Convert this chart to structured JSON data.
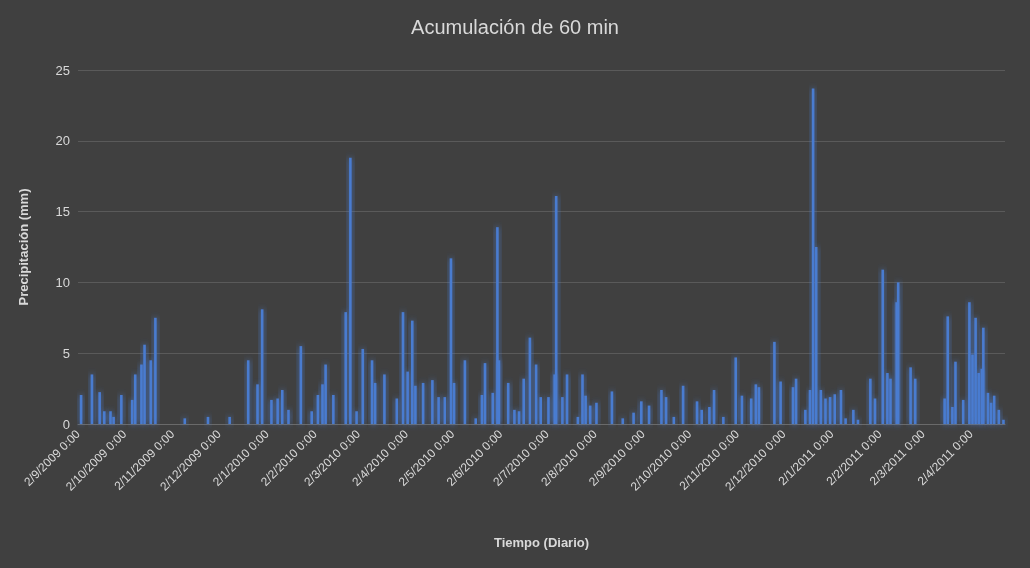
{
  "chart_data": {
    "type": "bar",
    "title": "Acumulación de 60 min",
    "xlabel": "Tiempo (Diario)",
    "ylabel": "Precipitación (mm)",
    "x": [
      "2009-09-04",
      "2009-09-11",
      "2009-09-16",
      "2009-09-19",
      "2009-09-23",
      "2009-09-25",
      "2009-09-30",
      "2009-10-07",
      "2009-10-09",
      "2009-10-13",
      "2009-10-15",
      "2009-10-19",
      "2009-10-22",
      "2009-11-10",
      "2009-11-25",
      "2009-12-09",
      "2009-12-21",
      "2009-12-27",
      "2009-12-30",
      "2010-01-05",
      "2010-01-09",
      "2010-01-12",
      "2010-01-16",
      "2010-01-24",
      "2010-01-31",
      "2010-02-04",
      "2010-02-07",
      "2010-02-09",
      "2010-02-14",
      "2010-02-22",
      "2010-02-25",
      "2010-03-01",
      "2010-03-05",
      "2010-03-11",
      "2010-03-13",
      "2010-03-19",
      "2010-03-27",
      "2010-03-31",
      "2010-04-03",
      "2010-04-06",
      "2010-04-08",
      "2010-04-13",
      "2010-04-19",
      "2010-04-23",
      "2010-04-27",
      "2010-05-01",
      "2010-05-03",
      "2010-05-10",
      "2010-05-17",
      "2010-05-21",
      "2010-05-23",
      "2010-05-28",
      "2010-05-31",
      "2010-06-01",
      "2010-06-07",
      "2010-06-11",
      "2010-06-14",
      "2010-06-17",
      "2010-06-21",
      "2010-06-25",
      "2010-06-28",
      "2010-07-03",
      "2010-07-07",
      "2010-07-08",
      "2010-07-12",
      "2010-07-15",
      "2010-07-22",
      "2010-07-25",
      "2010-07-27",
      "2010-07-30",
      "2010-08-03",
      "2010-08-13",
      "2010-08-20",
      "2010-08-27",
      "2010-09-01",
      "2010-09-06",
      "2010-09-14",
      "2010-09-17",
      "2010-09-22",
      "2010-09-28",
      "2010-10-07",
      "2010-10-10",
      "2010-10-15",
      "2010-10-18",
      "2010-10-24",
      "2010-11-01",
      "2010-11-05",
      "2010-11-11",
      "2010-11-14",
      "2010-11-16",
      "2010-11-26",
      "2010-11-30",
      "2010-12-08",
      "2010-12-10",
      "2010-12-16",
      "2010-12-19",
      "2010-12-21",
      "2010-12-23",
      "2010-12-26",
      "2010-12-29",
      "2011-01-01",
      "2011-01-04",
      "2011-01-08",
      "2011-01-11",
      "2011-01-16",
      "2011-01-19",
      "2011-01-27",
      "2011-01-30",
      "2011-02-04",
      "2011-02-07",
      "2011-02-09",
      "2011-02-13",
      "2011-02-14",
      "2011-02-22",
      "2011-02-25",
      "2011-03-16",
      "2011-03-18",
      "2011-03-21",
      "2011-03-23",
      "2011-03-28",
      "2011-04-01",
      "2011-04-03",
      "2011-04-05",
      "2011-04-07",
      "2011-04-09",
      "2011-04-10",
      "2011-04-13",
      "2011-04-15",
      "2011-04-17",
      "2011-04-20",
      "2011-04-23"
    ],
    "series": [
      {
        "color": "#4a7bd0",
        "values": [
          2.05,
          3.5,
          2.25,
          0.9,
          0.9,
          0.5,
          2.05,
          1.7,
          3.5,
          4.2,
          5.6,
          4.5,
          7.5,
          0.4,
          0.5,
          0.5,
          4.5,
          2.8,
          8.1,
          1.7,
          1.8,
          2.4,
          1.0,
          5.5,
          0.9,
          2.05,
          2.8,
          4.2,
          2.05,
          7.9,
          18.8,
          0.9,
          5.3,
          4.5,
          2.9,
          3.5,
          1.8,
          7.9,
          3.7,
          7.3,
          2.7,
          2.9,
          3.1,
          1.9,
          1.9,
          11.7,
          2.9,
          4.5,
          0.4,
          2.05,
          4.3,
          2.2,
          13.9,
          4.5,
          2.9,
          1.0,
          0.9,
          3.2,
          6.1,
          4.2,
          1.9,
          1.9,
          3.5,
          16.1,
          1.9,
          3.5,
          0.5,
          3.5,
          2.0,
          1.3,
          1.5,
          2.3,
          0.4,
          0.8,
          1.6,
          1.3,
          2.4,
          1.9,
          0.5,
          2.7,
          1.6,
          1.0,
          1.2,
          2.4,
          0.5,
          4.7,
          2.0,
          1.8,
          2.8,
          2.6,
          5.8,
          3.0,
          2.6,
          3.2,
          1.0,
          2.4,
          23.7,
          12.5,
          2.4,
          1.8,
          1.9,
          2.1,
          2.4,
          0.4,
          1.0,
          0.3,
          3.2,
          1.8,
          10.9,
          3.6,
          3.2,
          8.6,
          10.0,
          4.0,
          3.2,
          1.8,
          7.6,
          1.2,
          4.4,
          1.7,
          8.6,
          4.9,
          7.5,
          3.6,
          3.9,
          6.8,
          2.2,
          1.5,
          2.0,
          1.0,
          0.3
        ]
      }
    ],
    "xlim": [
      "2009-09-02",
      "2011-04-24"
    ],
    "xticks": [
      {
        "value": "2009-09-02",
        "label": "2/9/2009 0:00"
      },
      {
        "value": "2009-10-02",
        "label": "2/10/2009 0:00"
      },
      {
        "value": "2009-11-02",
        "label": "2/11/2009 0:00"
      },
      {
        "value": "2009-12-02",
        "label": "2/12/2009 0:00"
      },
      {
        "value": "2010-01-02",
        "label": "2/1/2010 0:00"
      },
      {
        "value": "2010-02-02",
        "label": "2/2/2010 0:00"
      },
      {
        "value": "2010-03-02",
        "label": "2/3/2010 0:00"
      },
      {
        "value": "2010-04-02",
        "label": "2/4/2010 0:00"
      },
      {
        "value": "2010-05-02",
        "label": "2/5/2010 0:00"
      },
      {
        "value": "2010-06-02",
        "label": "2/6/2010 0:00"
      },
      {
        "value": "2010-07-02",
        "label": "2/7/2010 0:00"
      },
      {
        "value": "2010-08-02",
        "label": "2/8/2010 0:00"
      },
      {
        "value": "2010-09-02",
        "label": "2/9/2010 0:00"
      },
      {
        "value": "2010-10-02",
        "label": "2/10/2010 0:00"
      },
      {
        "value": "2010-11-02",
        "label": "2/11/2010 0:00"
      },
      {
        "value": "2010-12-02",
        "label": "2/12/2010 0:00"
      },
      {
        "value": "2011-01-02",
        "label": "2/1/2011 0:00"
      },
      {
        "value": "2011-02-02",
        "label": "2/2/2011 0:00"
      },
      {
        "value": "2011-03-02",
        "label": "2/3/2011 0:00"
      },
      {
        "value": "2011-04-02",
        "label": "2/4/2011 0:00"
      }
    ],
    "ylim": [
      0,
      25
    ],
    "yticks": [
      0,
      5,
      10,
      15,
      20,
      25
    ],
    "grid": "y"
  }
}
